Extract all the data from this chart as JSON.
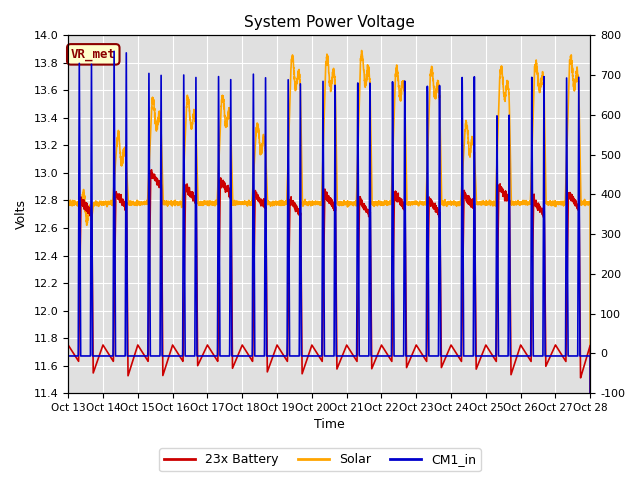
{
  "title": "System Power Voltage",
  "xlabel": "Time",
  "ylabel_left": "Volts",
  "ylim_left": [
    11.4,
    14.0
  ],
  "ylim_right": [
    -100,
    800
  ],
  "yticks_left": [
    11.4,
    11.6,
    11.8,
    12.0,
    12.2,
    12.4,
    12.6,
    12.8,
    13.0,
    13.2,
    13.4,
    13.6,
    13.8,
    14.0
  ],
  "yticks_right": [
    -100,
    0,
    100,
    200,
    300,
    400,
    500,
    600,
    700,
    800
  ],
  "xtick_labels": [
    "Oct 13",
    "Oct 14",
    "Oct 15",
    "Oct 16",
    "Oct 17",
    "Oct 18",
    "Oct 19",
    "Oct 20",
    "Oct 21",
    "Oct 22",
    "Oct 23",
    "Oct 24",
    "Oct 25",
    "Oct 26",
    "Oct 27",
    "Oct 28"
  ],
  "background_color": "#ffffff",
  "plot_bg_color": "#e0e0e0",
  "grid_color": "#ffffff",
  "annotation_text": "VR_met",
  "annotation_fg": "#8B0000",
  "annotation_bg": "#ffffcc",
  "series_battery_label": "23x Battery",
  "series_battery_color": "#cc0000",
  "series_solar_label": "Solar",
  "series_solar_color": "#FFA500",
  "series_cm1_label": "CM1_in",
  "series_cm1_color": "#0000cc",
  "lw": 1.2,
  "n_days": 15,
  "pts_per_day": 300
}
